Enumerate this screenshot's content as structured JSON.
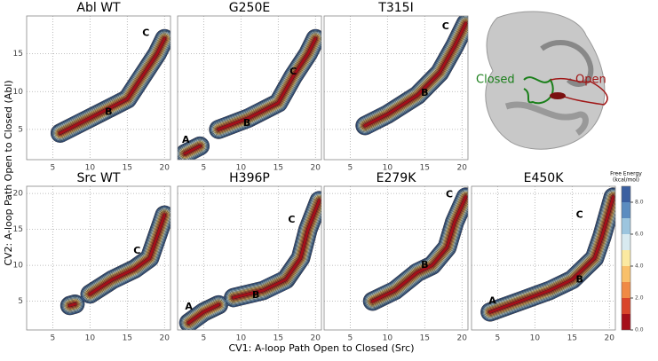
{
  "figure": {
    "xlabel": "CV1: A-loop Path Open to Closed (Src)",
    "ylabel": "CV2: A-loop Path Open to Closed (Abl)",
    "colorbar": {
      "title": [
        "Free Energy",
        "(kcal/mol)"
      ],
      "lim": [
        0,
        9
      ],
      "levels": [
        0,
        1,
        2,
        3,
        4,
        5,
        6,
        7,
        8
      ],
      "colors": [
        "#a50f1a",
        "#d9452b",
        "#f08a45",
        "#f9c06a",
        "#fbe9a0",
        "#d8eaf0",
        "#9cc5de",
        "#5b8cc0",
        "#3a5fa0"
      ],
      "ticks": [
        {
          "value": 0,
          "label": "0.0"
        },
        {
          "value": 2,
          "label": "2.0"
        },
        {
          "value": 4,
          "label": "4.0"
        },
        {
          "value": 6,
          "label": "6.0"
        },
        {
          "value": 8,
          "label": "8.0"
        }
      ]
    }
  },
  "image": {
    "labels": [
      "Closed",
      "Open"
    ]
  },
  "chart_data": [
    {
      "type": "contour",
      "title": "Abl WT",
      "xlim": [
        1.5,
        20.8
      ],
      "ylim": [
        1,
        20
      ],
      "xticks": [
        5,
        10,
        15,
        20
      ],
      "yticks": [
        5,
        10,
        15
      ],
      "ytick_labels": true,
      "ridge": {
        "x": [
          6,
          9,
          12,
          15,
          17,
          19,
          20
        ],
        "y": [
          4.5,
          6,
          7.5,
          9,
          12,
          15,
          17
        ]
      },
      "annotations": [
        {
          "text": "B",
          "x": 12.5,
          "y": 7.3
        },
        {
          "text": "C",
          "x": 17.5,
          "y": 17.7
        }
      ]
    },
    {
      "type": "contour",
      "title": "G250E",
      "xlim": [
        1.5,
        20.8
      ],
      "ylim": [
        1,
        20
      ],
      "xticks": [
        5,
        10,
        15,
        20
      ],
      "yticks": [
        5,
        10,
        15
      ],
      "ytick_labels": false,
      "ridge": {
        "x": [
          2.5,
          4.5,
          null,
          7,
          11,
          15,
          17,
          19,
          20
        ],
        "y": [
          1.8,
          2.8,
          null,
          5,
          6.5,
          8.5,
          12,
          15,
          17
        ]
      },
      "annotations": [
        {
          "text": "A",
          "x": 2.6,
          "y": 3.6
        },
        {
          "text": "B",
          "x": 10.8,
          "y": 5.8
        },
        {
          "text": "C",
          "x": 17,
          "y": 12.6
        }
      ]
    },
    {
      "type": "contour",
      "title": "T315I",
      "xlim": [
        1.5,
        20.8
      ],
      "ylim": [
        1,
        20
      ],
      "xticks": [
        5,
        10,
        15,
        20
      ],
      "yticks": [
        5,
        10,
        15
      ],
      "ytick_labels": false,
      "ridge": {
        "x": [
          7,
          10,
          14,
          17,
          19,
          20.5
        ],
        "y": [
          5.5,
          7,
          9.5,
          12.5,
          16,
          19
        ]
      },
      "annotations": [
        {
          "text": "B",
          "x": 15,
          "y": 9.8
        },
        {
          "text": "C",
          "x": 17.8,
          "y": 18.6
        }
      ]
    },
    {
      "type": "contour",
      "title": "Src WT",
      "xlim": [
        1.5,
        20.8
      ],
      "ylim": [
        1,
        21
      ],
      "xticks": [
        5,
        10,
        15,
        20
      ],
      "yticks": [
        5,
        10,
        15,
        20
      ],
      "ytick_labels": true,
      "ridge": {
        "x": [
          7.3,
          8,
          null,
          10,
          13,
          16,
          18,
          19,
          20
        ],
        "y": [
          4.4,
          4.6,
          null,
          6,
          8,
          9.5,
          11,
          14,
          17
        ]
      },
      "annotations": [
        {
          "text": "C",
          "x": 16.3,
          "y": 12
        }
      ]
    },
    {
      "type": "contour",
      "title": "H396P",
      "xlim": [
        1.5,
        20.8
      ],
      "ylim": [
        1,
        21
      ],
      "xticks": [
        5,
        10,
        15,
        20
      ],
      "yticks": [
        5,
        10,
        15,
        20
      ],
      "ytick_labels": false,
      "ridge": {
        "x": [
          3,
          5,
          7,
          null,
          9,
          13,
          16,
          18,
          19,
          20.5
        ],
        "y": [
          2,
          3.5,
          4.5,
          null,
          5.5,
          6.5,
          8,
          11,
          15,
          19
        ]
      },
      "annotations": [
        {
          "text": "A",
          "x": 3,
          "y": 4.2
        },
        {
          "text": "B",
          "x": 12,
          "y": 5.8
        },
        {
          "text": "C",
          "x": 16.8,
          "y": 16.3
        }
      ]
    },
    {
      "type": "contour",
      "title": "E279K",
      "xlim": [
        1.5,
        20.8
      ],
      "ylim": [
        1,
        21
      ],
      "xticks": [
        5,
        10,
        15,
        20
      ],
      "yticks": [
        5,
        10,
        15,
        20
      ],
      "ytick_labels": false,
      "ridge": {
        "x": [
          8,
          11,
          14,
          16,
          18,
          19,
          20.5
        ],
        "y": [
          5,
          6.5,
          9,
          10,
          12.5,
          16,
          19.5
        ]
      },
      "annotations": [
        {
          "text": "B",
          "x": 15,
          "y": 10
        },
        {
          "text": "C",
          "x": 18.3,
          "y": 19.8
        }
      ]
    },
    {
      "type": "contour",
      "title": "E450K",
      "xlim": [
        1.5,
        20.8
      ],
      "ylim": [
        1,
        21
      ],
      "xticks": [
        5,
        10,
        15,
        20
      ],
      "yticks": [
        5,
        10,
        15,
        20
      ],
      "ytick_labels": false,
      "ridge": {
        "x": [
          4,
          8,
          12,
          15,
          18,
          19,
          20.5
        ],
        "y": [
          3.5,
          5,
          6.5,
          8,
          11,
          14,
          19.5
        ]
      },
      "annotations": [
        {
          "text": "A",
          "x": 4.3,
          "y": 5
        },
        {
          "text": "B",
          "x": 16,
          "y": 8
        },
        {
          "text": "C",
          "x": 16,
          "y": 17
        }
      ]
    }
  ]
}
